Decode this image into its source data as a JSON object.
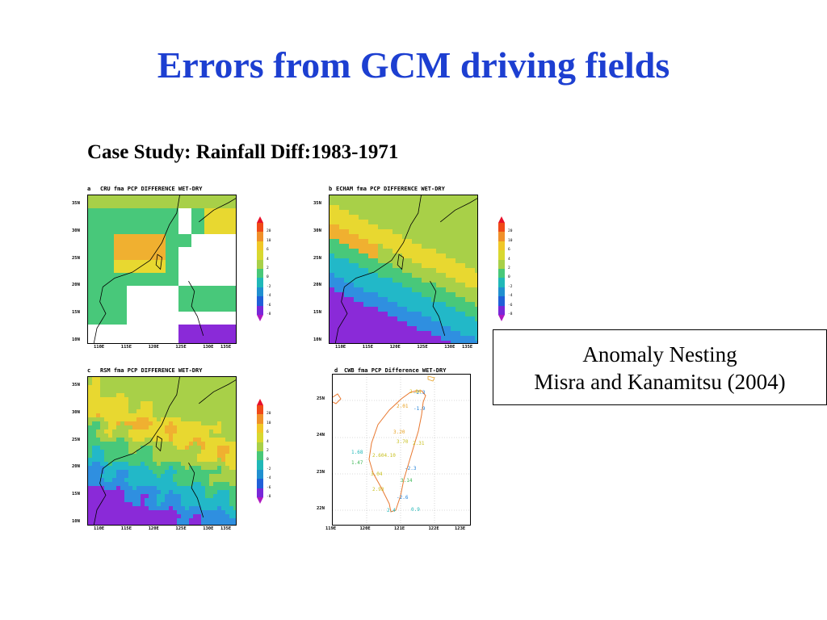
{
  "slide": {
    "title": "Errors from GCM driving fields",
    "subtitle": "Case Study: Rainfall Diff:1983-1971"
  },
  "annotation": {
    "line1": "Anomaly Nesting",
    "line2": "Misra and Kanamitsu (2004)"
  },
  "panels": [
    {
      "letter": "a",
      "title": "CRU fma PCP DIFFERENCE WET-DRY",
      "y_ticks": [
        "35N",
        "30N",
        "25N",
        "20N",
        "15N",
        "10N"
      ],
      "x_ticks": [
        "110E",
        "115E",
        "120E",
        "125E",
        "130E",
        "135E"
      ]
    },
    {
      "letter": "b",
      "title": "ECHAM fma PCP DIFFERENCE WET-DRY",
      "y_ticks": [
        "35N",
        "30N",
        "25N",
        "20N",
        "15N",
        "10N"
      ],
      "x_ticks": [
        "110E",
        "115E",
        "120E",
        "125E",
        "130E",
        "135E"
      ]
    },
    {
      "letter": "c",
      "title": "RSM fma PCP DIFFERENCE WET-DRY",
      "y_ticks": [
        "35N",
        "30N",
        "25N",
        "20N",
        "15N",
        "10N"
      ],
      "x_ticks": [
        "110E",
        "115E",
        "120E",
        "125E",
        "130E",
        "135E"
      ]
    },
    {
      "letter": "d",
      "title": "CWB fma PCP Difference WET-DRY",
      "y_ticks": [
        "25N",
        "24N",
        "23N",
        "22N"
      ],
      "x_ticks": [
        "119E",
        "120E",
        "121E",
        "122E",
        "123E"
      ]
    }
  ],
  "colorbar": {
    "ticks": [
      "20",
      "10",
      "6",
      "4",
      "2",
      "0",
      "-2",
      "-4",
      "-6",
      "-8"
    ],
    "colors": [
      "#e8102a",
      "#f04a18",
      "#f0902a",
      "#f0c828",
      "#d8d830",
      "#a8d048",
      "#48c878",
      "#20b8b8",
      "#2090d0",
      "#2060d8",
      "#7828d8",
      "#b018c0"
    ]
  },
  "cwb_labels": [
    {
      "text": "-2.3",
      "color": "#1c7fd8"
    },
    {
      "text": "2.01",
      "color": "#e8a020"
    },
    {
      "text": "-1.9",
      "color": "#1c7fd8"
    },
    {
      "text": "2.84",
      "color": "#d8c020"
    },
    {
      "text": "3.20",
      "color": "#e8a020"
    },
    {
      "text": "3.70",
      "color": "#c8c020"
    },
    {
      "text": "2.31",
      "color": "#c8c020"
    },
    {
      "text": "1.68",
      "color": "#20b8b8"
    },
    {
      "text": "1.47",
      "color": "#40b858"
    },
    {
      "text": "2.604.10",
      "color": "#c8c020"
    },
    {
      "text": "-2.3",
      "color": "#1c7fd8"
    },
    {
      "text": "3.04",
      "color": "#c8c020"
    },
    {
      "text": "3.14",
      "color": "#40b858"
    },
    {
      "text": "2.93",
      "color": "#c8c020"
    },
    {
      "text": "-2.6",
      "color": "#1c7fd8"
    },
    {
      "text": "0.9",
      "color": "#20b8b8"
    },
    {
      "text": "2.4",
      "color": "#20b8b8"
    }
  ],
  "palette": {
    "purple": "#8a2ad8",
    "blue": "#2f8fe0",
    "cyan": "#22b8c8",
    "green": "#48c87a",
    "lime": "#a8d048",
    "yellow": "#e8d830",
    "orange": "#f0b030",
    "white": "#ffffff",
    "coast": "#000000",
    "cwb_outline": "#e87830"
  }
}
